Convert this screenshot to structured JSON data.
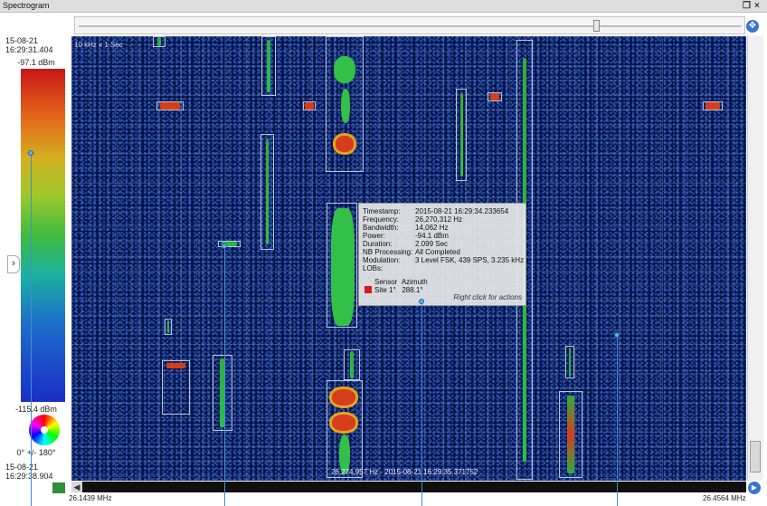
{
  "window": {
    "title": "Spectrogram",
    "restore_glyph": "❐",
    "close_glyph": "×"
  },
  "time_top": {
    "date": "15-08-21",
    "time": "16:29:31.404"
  },
  "time_bottom": {
    "date": "15-08-21",
    "time": "16:29:38.904"
  },
  "colorbar": {
    "max_label": "-97.1 dBm",
    "min_label": "-115.4 dBm"
  },
  "lob_wheel_label": "0° +/- 180°",
  "plot": {
    "resolution_text": "10 kHz x 1 Sec",
    "cursor_readout": "26,274,957 Hz - 2015-08-21 16:29:35.371752"
  },
  "tooltip": {
    "rows": [
      {
        "key": "Timestamp:",
        "value": "2015-08-21 16:29:34.233654"
      },
      {
        "key": "Frequency:",
        "value": "26,270,312 Hz"
      },
      {
        "key": "Bandwidth:",
        "value": "14,062 Hz"
      },
      {
        "key": "Power:",
        "value": "-94.1 dBm"
      },
      {
        "key": "Duration:",
        "value": "2.099 Sec"
      },
      {
        "key": "NB Processing:",
        "value": "All Completed"
      },
      {
        "key": "Modulation:",
        "value": "3 Level FSK, 439 SPS, 3.235 kHz"
      },
      {
        "key": "LOBs:",
        "value": ""
      }
    ],
    "lob_headers": [
      "Sensor",
      "Azimuth"
    ],
    "lob_row": {
      "sensor": "Site 1°",
      "azimuth": "288.1°",
      "color": "#d41b1b"
    },
    "hint": "Right click for actions"
  },
  "freq_axis": {
    "start": "26.1439 MHz",
    "end": "26.4564 MHz"
  },
  "icons": [
    "zoom-fit-icon",
    "expand-left-icon",
    "play-icon",
    "scroll-left-icon",
    "grip-icon"
  ]
}
